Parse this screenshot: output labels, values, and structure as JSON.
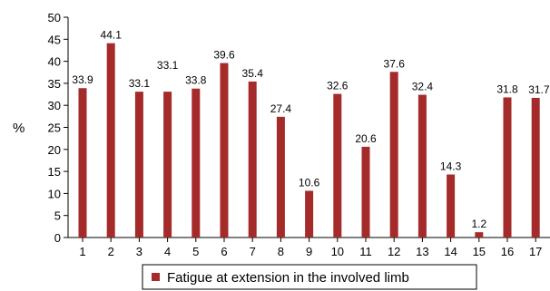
{
  "chart_data": {
    "type": "bar",
    "title": "",
    "xlabel": "",
    "ylabel": "%",
    "ylim": [
      0,
      50
    ],
    "yticks": [
      0,
      5,
      10,
      15,
      20,
      25,
      30,
      35,
      40,
      45,
      50
    ],
    "categories": [
      "1",
      "2",
      "3",
      "4",
      "5",
      "6",
      "7",
      "8",
      "9",
      "10",
      "11",
      "12",
      "13",
      "14",
      "15",
      "16",
      "17"
    ],
    "series": [
      {
        "name": "Fatigue at extension in the involved limb",
        "color": "#a52a2a",
        "values": [
          33.9,
          44.1,
          33.1,
          33.1,
          33.8,
          39.6,
          35.4,
          27.4,
          10.6,
          32.6,
          20.6,
          37.6,
          32.4,
          14.3,
          1.2,
          31.8,
          31.7
        ],
        "labels": [
          "33.9",
          "44.1",
          "33.1",
          "33.1",
          "33.8",
          "39.6",
          "35.4",
          "27.4",
          "10.6",
          "32.6",
          "20.6",
          "37.6",
          "32.4",
          "14.3",
          "1.2",
          "31.8",
          "31.7"
        ]
      }
    ],
    "grid": false,
    "legend_position": "bottom"
  }
}
